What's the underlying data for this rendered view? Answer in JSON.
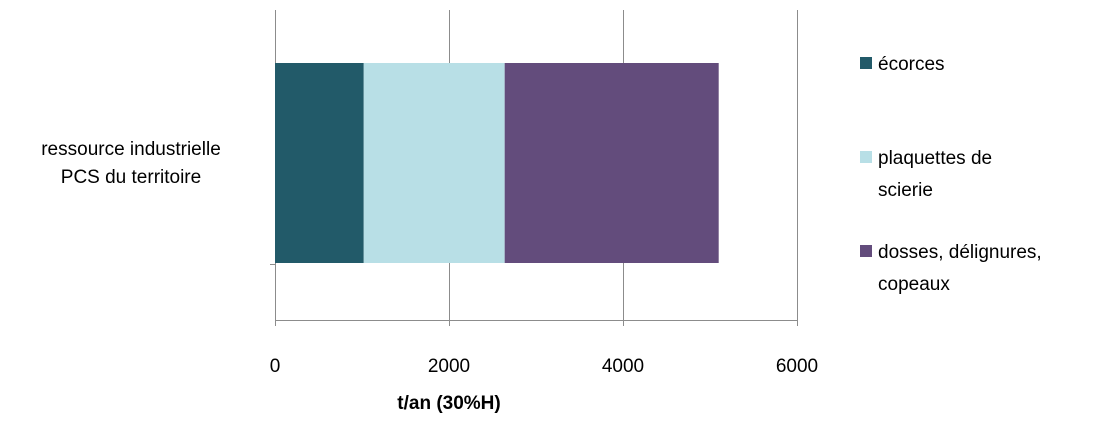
{
  "chart_data": {
    "type": "bar",
    "orientation": "horizontal",
    "stacked": true,
    "categories": [
      "ressource industrielle PCS du territoire"
    ],
    "category_label_lines": [
      "ressource industrielle",
      "PCS du territoire"
    ],
    "series": [
      {
        "name": "écorces",
        "values": [
          1020
        ],
        "color": "#225A69",
        "legend_lines": [
          "écorces"
        ]
      },
      {
        "name": "plaquettes de scierie",
        "values": [
          1620
        ],
        "color": "#B8DFE6",
        "legend_lines": [
          "plaquettes de",
          "scierie"
        ]
      },
      {
        "name": "dosses, délignures, copeaux",
        "values": [
          2460
        ],
        "color": "#634C7C",
        "legend_lines": [
          "dosses, délignures,",
          "copeaux"
        ]
      }
    ],
    "xlabel": "t/an (30%H)",
    "ylabel": "",
    "title": "",
    "xlim": [
      0,
      6000
    ],
    "xticks": [
      0,
      2000,
      4000,
      6000
    ],
    "xtick_labels": [
      "0",
      "2000",
      "4000",
      "6000"
    ],
    "grid": "vertical",
    "legend": "right"
  }
}
